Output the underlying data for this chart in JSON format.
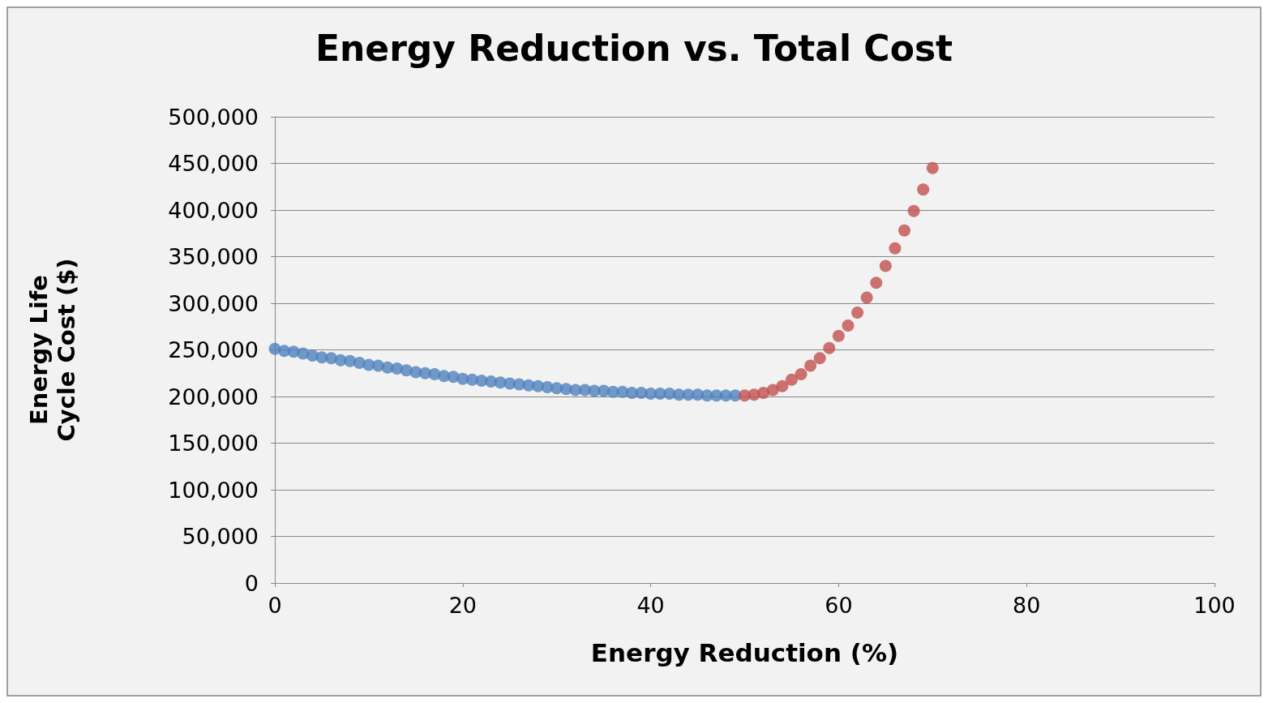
{
  "chart_data": {
    "type": "scatter",
    "title": "Energy Reduction vs. Total Cost",
    "xlabel": "Energy Reduction (%)",
    "ylabel": "Energy Life Cycle Cost ($)",
    "xlim": [
      0,
      100
    ],
    "xticks": [
      0,
      20,
      40,
      60,
      80,
      100
    ],
    "ylim": [
      0,
      500000
    ],
    "yticks": [
      {
        "value": 0,
        "label": "0"
      },
      {
        "value": 50000,
        "label": "50,000"
      },
      {
        "value": 100000,
        "label": "100,000"
      },
      {
        "value": 150000,
        "label": "150,000"
      },
      {
        "value": 200000,
        "label": "200,000"
      },
      {
        "value": 250000,
        "label": "250,000"
      },
      {
        "value": 300000,
        "label": "300,000"
      },
      {
        "value": 350000,
        "label": "350,000"
      },
      {
        "value": 400000,
        "label": "400,000"
      },
      {
        "value": 450000,
        "label": "450,000"
      },
      {
        "value": 500000,
        "label": "500,000"
      }
    ],
    "grid": "y",
    "marker": "circle",
    "series": [
      {
        "color": "#4f81bd",
        "x": [
          0,
          1,
          2,
          3,
          4,
          5,
          6,
          7,
          8,
          9,
          10,
          11,
          12,
          13,
          14,
          15,
          16,
          17,
          18,
          19,
          20,
          21,
          22,
          23,
          24,
          25,
          26,
          27,
          28,
          29,
          30,
          31,
          32,
          33,
          34,
          35,
          36,
          37,
          38,
          39,
          40,
          41,
          42,
          43,
          44,
          45,
          46,
          47,
          48,
          49
        ],
        "values": [
          251000,
          249000,
          248000,
          246000,
          244000,
          242000,
          241000,
          239000,
          238000,
          236000,
          234000,
          233000,
          231000,
          230000,
          228000,
          226000,
          225000,
          224000,
          222000,
          221000,
          219000,
          218000,
          217000,
          216000,
          215000,
          214000,
          213000,
          212000,
          211000,
          210000,
          209000,
          208000,
          207000,
          207000,
          206000,
          206000,
          205000,
          205000,
          204000,
          204000,
          203000,
          203000,
          203000,
          202000,
          202000,
          202000,
          201000,
          201000,
          201000,
          201000
        ]
      },
      {
        "color": "#c0504d",
        "x": [
          50,
          51,
          52,
          53,
          54,
          55,
          56,
          57,
          58,
          59,
          60,
          61,
          62,
          63,
          64,
          65,
          66,
          67,
          68,
          69,
          70
        ],
        "values": [
          201000,
          202000,
          204000,
          207000,
          211000,
          218000,
          224000,
          233000,
          241000,
          252000,
          265000,
          276000,
          290000,
          306000,
          322000,
          340000,
          359000,
          378000,
          399000,
          422000,
          445000
        ]
      }
    ]
  }
}
